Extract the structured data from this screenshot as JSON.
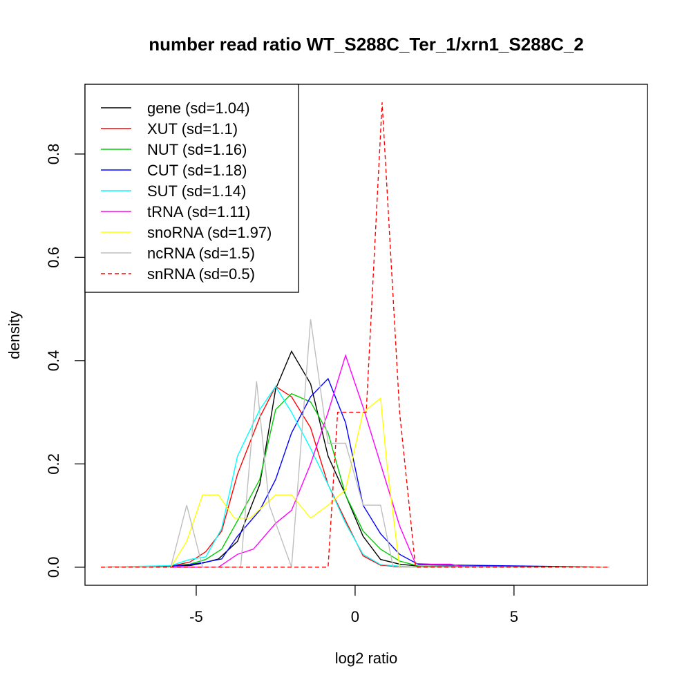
{
  "chart_data": {
    "type": "line",
    "title": "number read ratio WT_S288C_Ter_1/xrn1_S288C_2",
    "xlabel": "log2 ratio",
    "ylabel": "density",
    "xlim": [
      -8.5,
      9.2
    ],
    "ylim": [
      -0.035,
      0.935
    ],
    "xticks": [
      -5,
      0,
      5
    ],
    "yticks": [
      0.0,
      0.2,
      0.4,
      0.6,
      0.8
    ],
    "xtick_labels": [
      "-5",
      "0",
      "5"
    ],
    "ytick_labels": [
      "0.0",
      "0.2",
      "0.4",
      "0.6",
      "0.8"
    ],
    "grid": false,
    "legend_position": "top-left",
    "series": [
      {
        "name": "gene (sd=1.04)",
        "color": "#000000",
        "dash": "solid",
        "x": [
          -8,
          -5.2,
          -4.8,
          -4.3,
          -3.7,
          -3.0,
          -2.5,
          -2.0,
          -1.4,
          -0.85,
          -0.3,
          0.25,
          0.8,
          1.4,
          2.0,
          8
        ],
        "y": [
          0,
          0.003,
          0.008,
          0.016,
          0.05,
          0.16,
          0.345,
          0.418,
          0.355,
          0.215,
          0.14,
          0.06,
          0.015,
          0.006,
          0.002,
          0
        ]
      },
      {
        "name": "XUT (sd=1.1)",
        "color": "#ff0000",
        "dash": "solid",
        "x": [
          -8,
          -5.8,
          -5.2,
          -4.7,
          -4.2,
          -3.7,
          -3.0,
          -2.5,
          -2.0,
          -1.4,
          -0.85,
          -0.3,
          0.25,
          0.8,
          1.4,
          2.0,
          8
        ],
        "y": [
          0,
          0.002,
          0.01,
          0.03,
          0.07,
          0.18,
          0.29,
          0.35,
          0.33,
          0.27,
          0.16,
          0.09,
          0.022,
          0.004,
          0.001,
          0,
          0
        ]
      },
      {
        "name": "NUT (sd=1.16)",
        "color": "#00cd00",
        "dash": "solid",
        "x": [
          -8,
          -5.8,
          -5.2,
          -4.7,
          -4.2,
          -3.7,
          -3.0,
          -2.5,
          -2.0,
          -1.4,
          -0.85,
          -0.3,
          0.25,
          0.8,
          1.4,
          2.0,
          8
        ],
        "y": [
          0,
          0.002,
          0.006,
          0.015,
          0.035,
          0.09,
          0.17,
          0.305,
          0.336,
          0.32,
          0.26,
          0.14,
          0.07,
          0.035,
          0.012,
          0.002,
          0
        ]
      },
      {
        "name": "CUT (sd=1.18)",
        "color": "#0000ff",
        "dash": "solid",
        "x": [
          -8,
          -5.8,
          -5.2,
          -4.7,
          -4.2,
          -3.7,
          -3.0,
          -2.5,
          -2.0,
          -1.4,
          -0.85,
          -0.3,
          0.25,
          0.8,
          1.4,
          2.0,
          8
        ],
        "y": [
          0,
          0.002,
          0.005,
          0.01,
          0.016,
          0.06,
          0.11,
          0.17,
          0.26,
          0.33,
          0.365,
          0.28,
          0.12,
          0.065,
          0.025,
          0.005,
          0
        ]
      },
      {
        "name": "SUT (sd=1.14)",
        "color": "#00ffff",
        "dash": "solid",
        "x": [
          -8,
          -5.8,
          -5.2,
          -4.7,
          -4.2,
          -3.7,
          -3.0,
          -2.5,
          -2.0,
          -1.4,
          -0.85,
          -0.3,
          0.25,
          0.8,
          1.4,
          2.0,
          8
        ],
        "y": [
          0,
          0.003,
          0.015,
          0.02,
          0.075,
          0.215,
          0.305,
          0.35,
          0.3,
          0.23,
          0.16,
          0.085,
          0.025,
          0.005,
          0.002,
          0,
          0
        ]
      },
      {
        "name": "tRNA (sd=1.11)",
        "color": "#ff00ff",
        "dash": "solid",
        "x": [
          -8,
          -4.3,
          -3.7,
          -3.2,
          -2.5,
          -2.0,
          -1.4,
          -0.85,
          -0.3,
          0.25,
          0.8,
          1.4,
          1.9,
          2.4,
          3.0,
          3.5,
          8
        ],
        "y": [
          0,
          0,
          0.025,
          0.035,
          0.085,
          0.11,
          0.2,
          0.3,
          0.41,
          0.31,
          0.2,
          0.08,
          0.007,
          0.006,
          0.006,
          0,
          0
        ]
      },
      {
        "name": "snoRNA (sd=1.97)",
        "color": "#ffff00",
        "dash": "solid",
        "x": [
          -8,
          -5.8,
          -5.3,
          -4.8,
          -4.3,
          -3.8,
          -3.3,
          -2.5,
          -2.0,
          -1.4,
          -0.85,
          -0.3,
          0.25,
          0.8,
          1.0,
          1.4,
          1.9,
          8
        ],
        "y": [
          0,
          0,
          0.05,
          0.14,
          0.14,
          0.095,
          0.095,
          0.14,
          0.14,
          0.095,
          0.12,
          0.15,
          0.3,
          0.327,
          0.2,
          0,
          0,
          0
        ]
      },
      {
        "name": "ncRNA (sd=1.5)",
        "color": "#bebebe",
        "dash": "solid",
        "x": [
          -8,
          -5.8,
          -5.3,
          -4.8,
          -3.6,
          -3.1,
          -2.7,
          -2.0,
          -1.4,
          -0.85,
          -0.3,
          0.25,
          0.8,
          1.2,
          1.9,
          8
        ],
        "y": [
          0,
          0,
          0.12,
          0,
          0,
          0.36,
          0.12,
          0,
          0.48,
          0.24,
          0.24,
          0.12,
          0.12,
          0,
          0,
          0
        ]
      },
      {
        "name": "snRNA (sd=0.5)",
        "color": "#ff0000",
        "dash": "dashed",
        "x": [
          -8,
          -0.85,
          -0.55,
          0.35,
          0.85,
          1.4,
          1.9,
          8
        ],
        "y": [
          0,
          0,
          0.3,
          0.3,
          0.9,
          0.3,
          0,
          0
        ]
      }
    ]
  }
}
